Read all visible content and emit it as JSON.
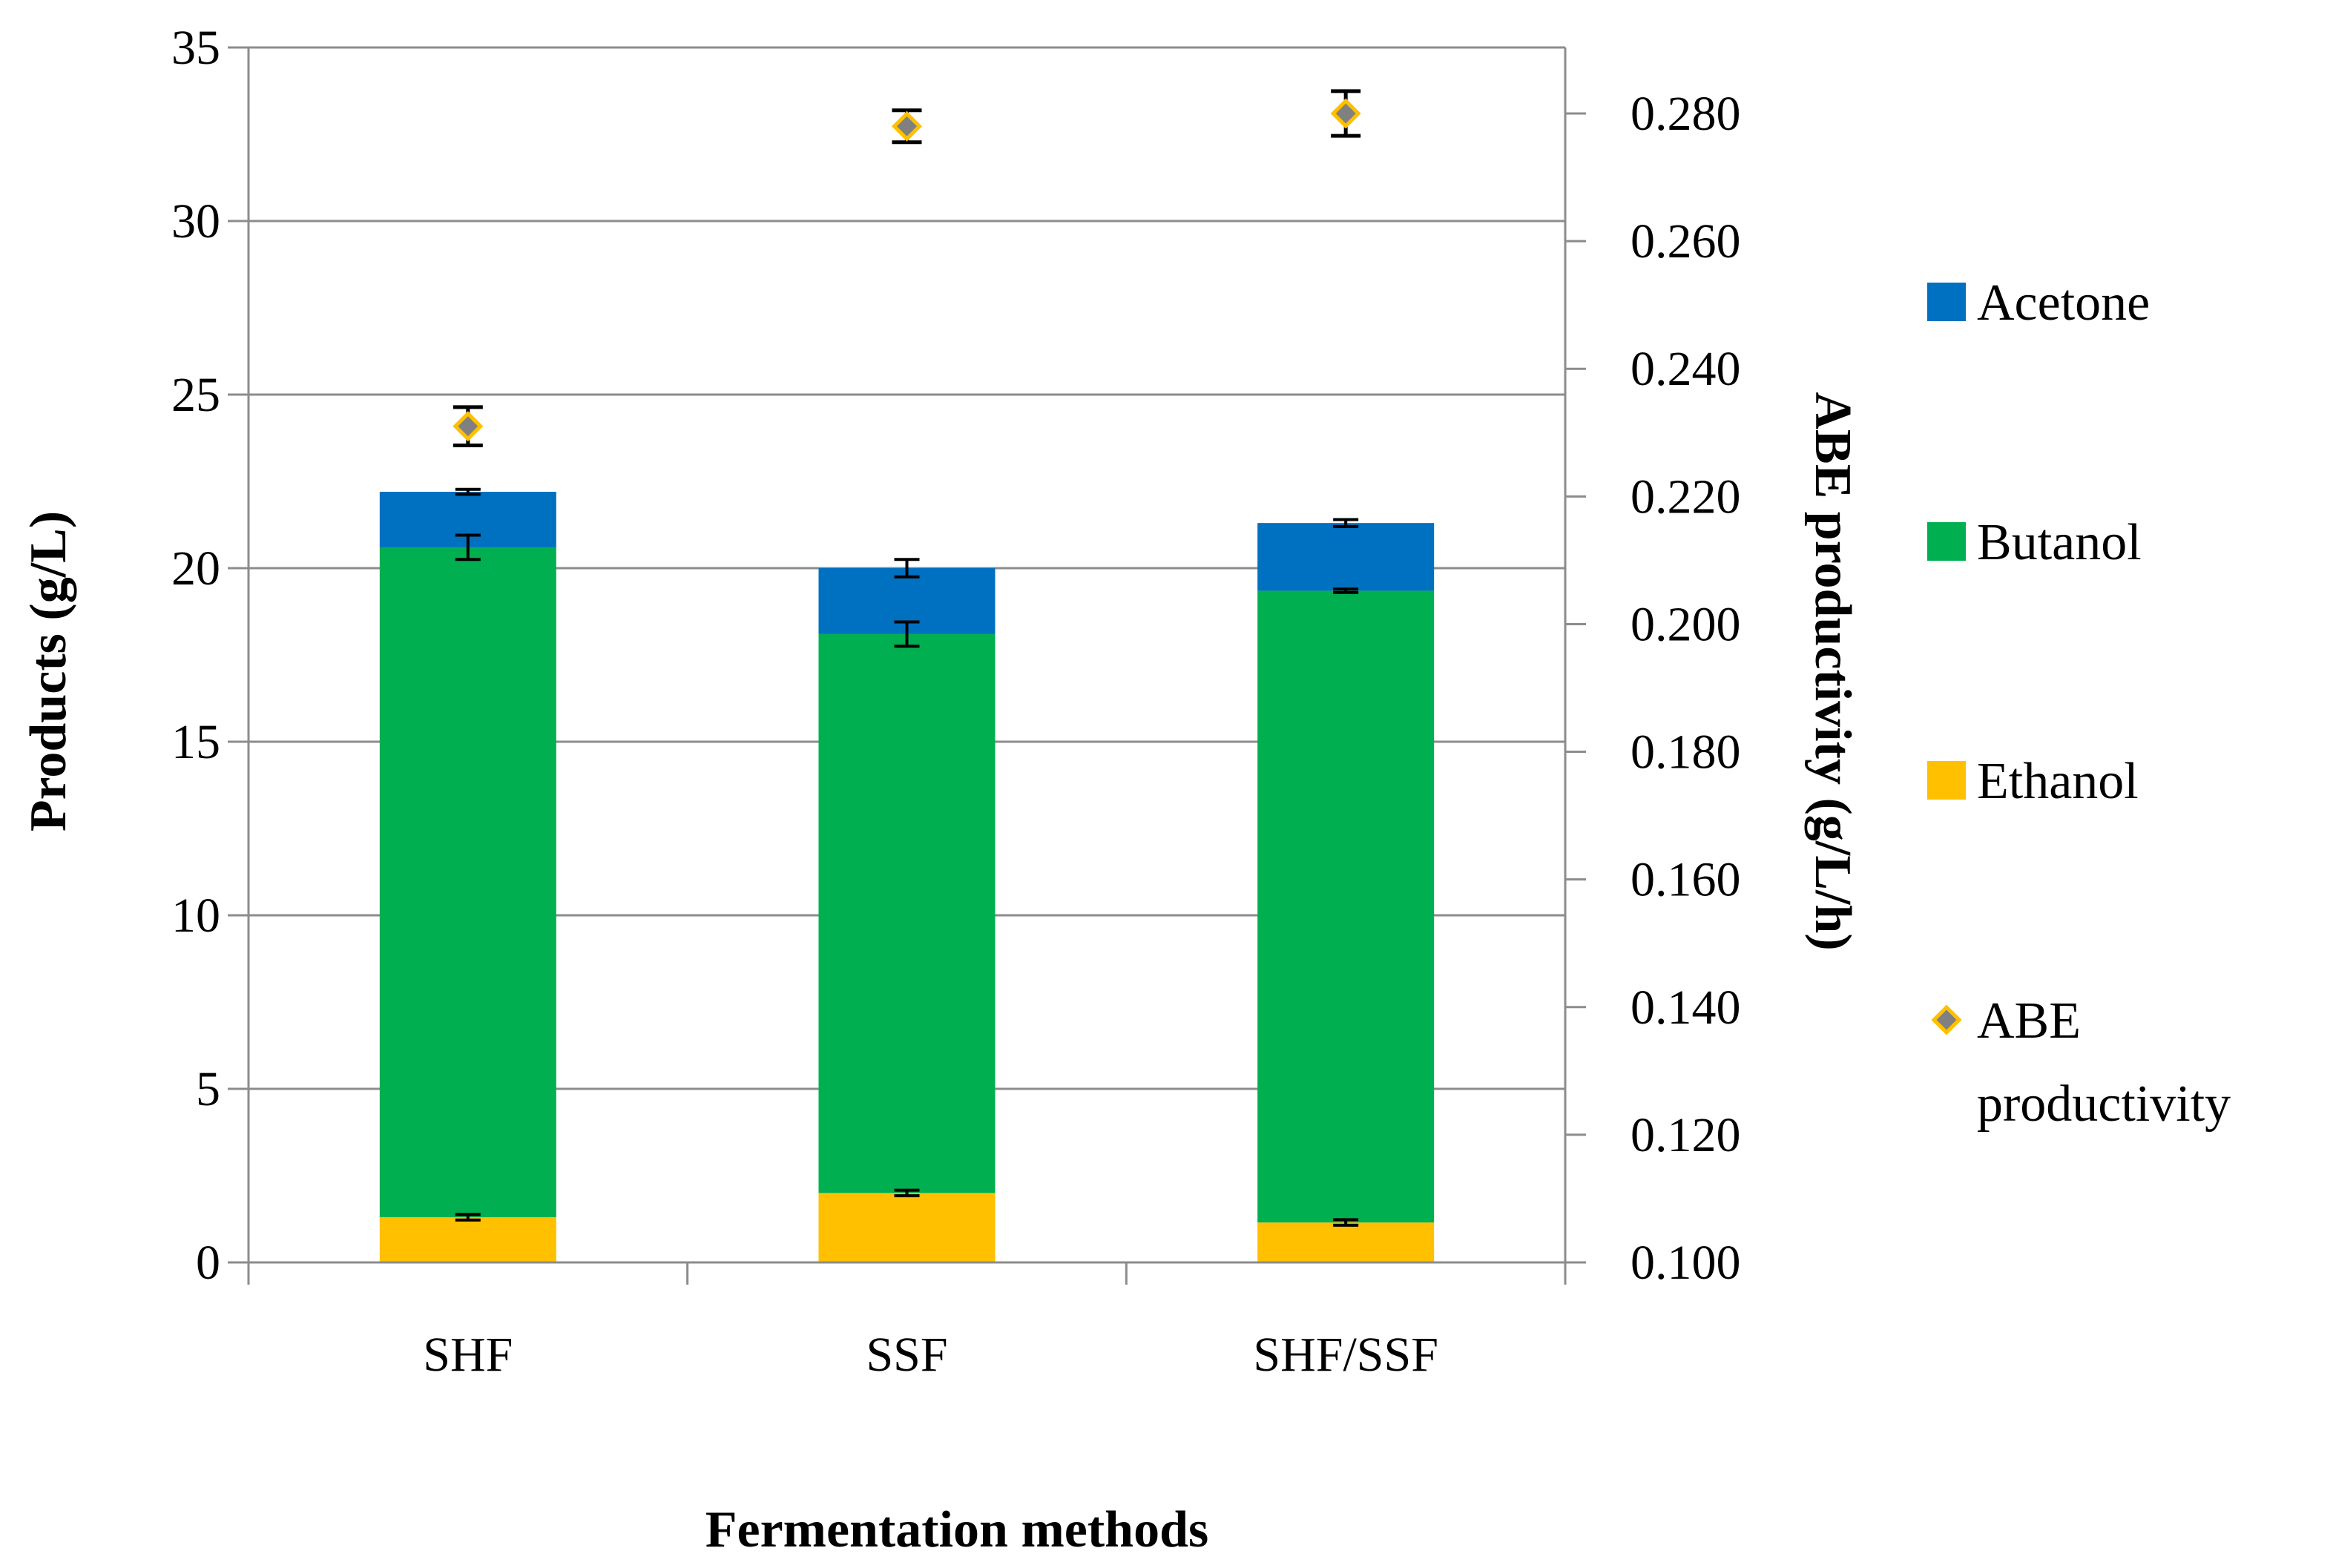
{
  "chart_data": {
    "type": "bar",
    "stacked": true,
    "categories": [
      "SHF",
      "SSF",
      "SHF/SSF"
    ],
    "series": [
      {
        "name": "Ethanol",
        "color": "#FFC000",
        "values": [
          1.3,
          2.0,
          1.15
        ],
        "errors": [
          0.08,
          0.08,
          0.08
        ]
      },
      {
        "name": "Butanol",
        "color": "#00B050",
        "values": [
          19.3,
          16.1,
          18.2
        ],
        "errors": [
          0.35,
          0.35,
          0.05
        ]
      },
      {
        "name": "Acetone",
        "color": "#0070C0",
        "values": [
          1.6,
          1.9,
          1.95
        ],
        "errors": [
          0.07,
          0.25,
          0.1
        ]
      }
    ],
    "secondary_series": {
      "name": "ABE productivity",
      "marker_fill": "#808080",
      "marker_stroke": "#FFC000",
      "values": [
        0.231,
        0.278,
        0.28
      ],
      "errors": [
        0.003,
        0.0025,
        0.0035
      ]
    },
    "title": "",
    "xlabel": "Fermentation methods",
    "ylabel": "Products (g/L)",
    "y2label": "ABE productivity (g/L/h)",
    "ylim": [
      0,
      35
    ],
    "y2lim": [
      0.1,
      0.29
    ],
    "yticks": [
      "0",
      "5",
      "10",
      "15",
      "20",
      "25",
      "30",
      "35"
    ],
    "y2ticks": [
      "0.100",
      "0.120",
      "0.140",
      "0.160",
      "0.180",
      "0.200",
      "0.220",
      "0.240",
      "0.260",
      "0.280"
    ],
    "legend": [
      "Acetone",
      "Butanol",
      "Ethanol",
      "ABE productivity"
    ],
    "legend_lines": {
      "ABE productivity": [
        "ABE",
        "productivity"
      ]
    },
    "legend_position": "right",
    "grid": true
  }
}
